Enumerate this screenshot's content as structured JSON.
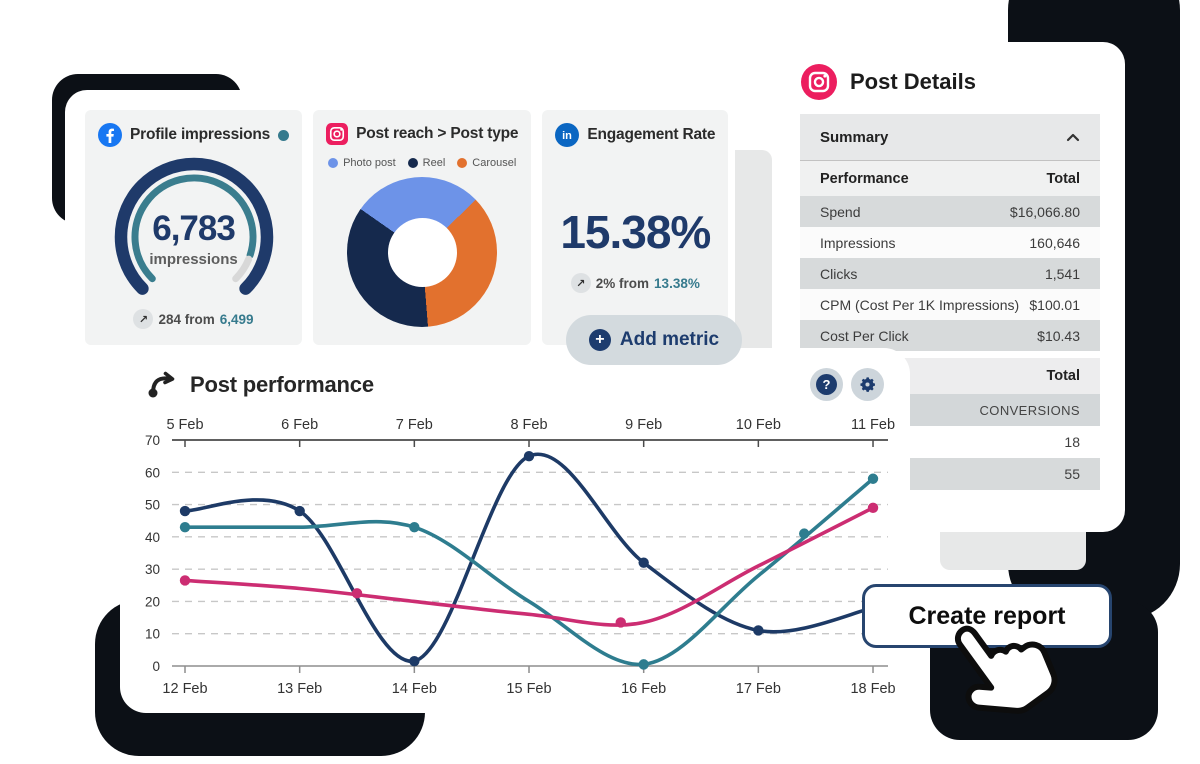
{
  "metrics": {
    "profile": {
      "title": "Profile impressions",
      "value": "6,783",
      "unit": "impressions",
      "change_prefix": "284 from",
      "change_value": "6,499",
      "trend_icon": "up-right-arrow"
    },
    "reach": {
      "title": "Post reach > Post type"
    },
    "engagement": {
      "title": "Engagement Rate",
      "value": "15.38%",
      "change_prefix": "2% from",
      "change_value": "13.38%",
      "trend_icon": "up-right-arrow"
    },
    "add_metric": "Add metric"
  },
  "post_details": {
    "title": "Post Details",
    "summary": "Summary",
    "performance_header": "Performance",
    "total_header": "Total",
    "rows": [
      [
        "Spend",
        "$16,066.80"
      ],
      [
        "Impressions",
        "160,646"
      ],
      [
        "Clicks",
        "1,541"
      ],
      [
        "CPM (Cost Per 1K Impressions)",
        "$100.01"
      ],
      [
        "Cost Per Click",
        "$10.43"
      ]
    ],
    "total2_header": "Total",
    "conversions_label": "CONVERSIONS",
    "conversions_values": [
      "18",
      "55"
    ]
  },
  "post_performance": {
    "title": "Post performance"
  },
  "create_report": "Create report",
  "colors": {
    "navy": "#1f3a6a",
    "teal": "#367a8d",
    "facebook": "#1877f2",
    "linkedin": "#0a66c2",
    "instagram": "#ec1e5f"
  },
  "chart_data": [
    {
      "type": "gauge",
      "title": "Profile impressions",
      "value": 6783,
      "label": "impressions",
      "change": 284,
      "previous": 6499,
      "fill_fraction": 0.9,
      "ring_color": "#1f3a6a",
      "fill_color": "#3a7d8e",
      "rest_color": "#d8d8d8"
    },
    {
      "type": "pie",
      "donut": true,
      "title": "Post reach > Post type",
      "labels": [
        "Photo post",
        "Reel",
        "Carousel"
      ],
      "values": [
        28,
        36,
        36
      ],
      "colors": [
        "#6d93e8",
        "#15294d",
        "#e2712e"
      ],
      "draw_order": [
        0,
        2,
        1
      ],
      "start_angle": 305,
      "legend_position": "top"
    },
    {
      "type": "line",
      "title": "Post performance",
      "x_top_labels": [
        "5 Feb",
        "6 Feb",
        "7 Feb",
        "8 Feb",
        "9 Feb",
        "10 Feb",
        "11 Feb"
      ],
      "x_bottom_labels": [
        "12 Feb",
        "13 Feb",
        "14 Feb",
        "15 Feb",
        "16 Feb",
        "17 Feb",
        "18 Feb"
      ],
      "ylim": [
        0,
        70
      ],
      "yticks": [
        0,
        10,
        20,
        30,
        40,
        50,
        60,
        70
      ],
      "grid": "dashed-horizontal",
      "series": [
        {
          "name": "navy",
          "color": "#1d3a66",
          "values": [
            48,
            48,
            1.5,
            65,
            32,
            11,
            18
          ],
          "markers": [
            [
              0,
              48
            ],
            [
              1,
              48
            ],
            [
              2,
              1.5
            ],
            [
              3,
              65
            ],
            [
              4,
              32
            ],
            [
              5,
              11
            ]
          ]
        },
        {
          "name": "teal",
          "color": "#2e7d8f",
          "values": [
            43,
            43,
            43,
            20,
            0.5,
            28,
            58
          ],
          "markers": [
            [
              0,
              43
            ],
            [
              2,
              43
            ],
            [
              4,
              0.5
            ],
            [
              5.4,
              41
            ],
            [
              6,
              58
            ]
          ]
        },
        {
          "name": "pink",
          "color": "#cc2d72",
          "values": [
            26.5,
            24,
            20,
            16,
            13.5,
            31,
            49
          ],
          "markers": [
            [
              0,
              26.5
            ],
            [
              1.5,
              22.5
            ],
            [
              3.8,
              13.5
            ],
            [
              6,
              49
            ]
          ]
        }
      ]
    }
  ]
}
